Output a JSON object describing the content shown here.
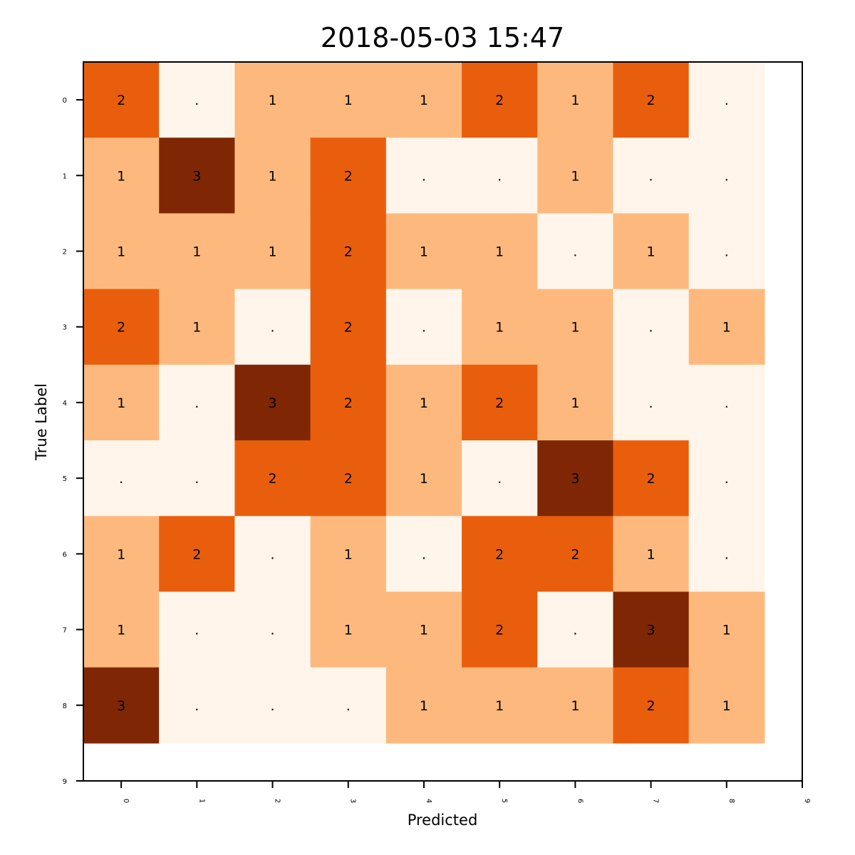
{
  "chart_data": {
    "type": "heatmap",
    "title": "2018-05-03 15:47",
    "xlabel": "Predicted",
    "ylabel": "True Label",
    "x_ticks": [
      "0",
      "1",
      "2",
      "3",
      "4",
      "5",
      "6",
      "7",
      "8",
      "9"
    ],
    "y_ticks": [
      "0",
      "1",
      "2",
      "3",
      "4",
      "5",
      "6",
      "7",
      "8",
      "9"
    ],
    "xlim": [
      0,
      9.5
    ],
    "ylim": [
      0,
      9.5
    ],
    "colormap": "Oranges",
    "color_scale": {
      "0": "#fff5eb",
      "1": "#fdb97d",
      "2": "#e95e0d",
      "3": "#7f2704"
    },
    "zero_symbol": ".",
    "grid": false,
    "matrix": [
      [
        2,
        0,
        1,
        1,
        1,
        2,
        1,
        2,
        0
      ],
      [
        1,
        3,
        1,
        2,
        0,
        0,
        1,
        0,
        0
      ],
      [
        1,
        1,
        1,
        2,
        1,
        1,
        0,
        1,
        0
      ],
      [
        2,
        1,
        0,
        2,
        0,
        1,
        1,
        0,
        1
      ],
      [
        1,
        0,
        3,
        2,
        1,
        2,
        1,
        0,
        0
      ],
      [
        0,
        0,
        2,
        2,
        1,
        0,
        3,
        2,
        0
      ],
      [
        1,
        2,
        0,
        1,
        0,
        2,
        2,
        1,
        0
      ],
      [
        1,
        0,
        0,
        1,
        1,
        2,
        0,
        3,
        1
      ],
      [
        3,
        0,
        0,
        0,
        1,
        1,
        1,
        2,
        1
      ]
    ]
  }
}
